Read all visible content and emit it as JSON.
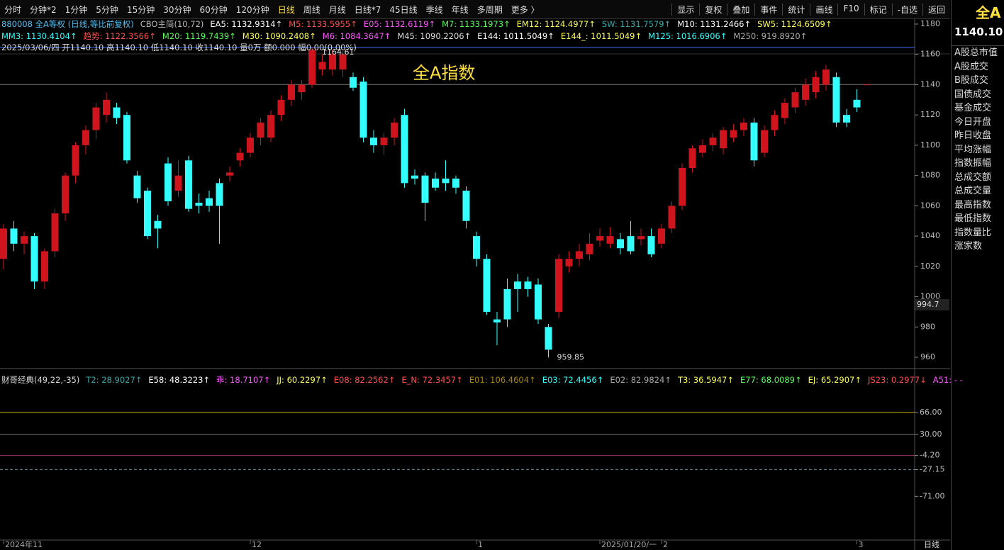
{
  "toolbar": {
    "periods": [
      "分时",
      "分钟*2",
      "1分钟",
      "5分钟",
      "15分钟",
      "30分钟",
      "60分钟",
      "120分钟",
      "日线",
      "周线",
      "月线",
      "日线*7",
      "45日线",
      "季线",
      "年线",
      "多周期",
      "更多 〉"
    ],
    "active": "日线",
    "actions": [
      "显示",
      "复权",
      "叠加",
      "事件",
      "统计",
      "画线",
      "F10",
      "标记",
      "-自选",
      "返回"
    ]
  },
  "side_panel": {
    "name": "全A",
    "price": "1140.10",
    "items": [
      "A股总市值",
      "A股成交",
      "B股成交",
      "国债成交",
      "基金成交",
      "今日开盘",
      "昨日收盘",
      "平均涨幅",
      "指数振幅",
      "总成交额",
      "总成交量",
      "最高指数",
      "最低指数",
      "指数量比",
      "涨家数"
    ]
  },
  "legend_rows": [
    [
      {
        "text": "880008 全A等权 (日线,等比前复权)",
        "color": "#4fc3f7"
      },
      {
        "text": "CBO主简(10,72)",
        "color": "#bbbbbb"
      },
      {
        "text": "EA5: 1132.9314↑",
        "color": "#ffffff"
      },
      {
        "text": "M5: 1133.5955↑",
        "color": "#ff5050"
      },
      {
        "text": "E05: 1132.6119↑",
        "color": "#ff55ff"
      },
      {
        "text": "M7: 1133.1973↑",
        "color": "#55ff55"
      },
      {
        "text": "EM12: 1124.4977↑",
        "color": "#ffff55"
      },
      {
        "text": "SW: 1131.7579↑",
        "color": "#3aa8a8"
      },
      {
        "text": "M10: 1131.2466↑",
        "color": "#ffffff"
      },
      {
        "text": "SW5: 1124.6509↑",
        "color": "#ffff55"
      }
    ],
    [
      {
        "text": "MM3: 1130.4104↑",
        "color": "#33ffff"
      },
      {
        "text": "趋势: 1122.3566↑",
        "color": "#ff5050"
      },
      {
        "text": "M20: 1119.7439↑",
        "color": "#55ff55"
      },
      {
        "text": "M30: 1090.2408↑",
        "color": "#ffff55"
      },
      {
        "text": "M6: 1084.3647↑",
        "color": "#ff55ff"
      },
      {
        "text": "M45: 1090.2206↑",
        "color": "#dddddd"
      },
      {
        "text": "E144: 1011.5049↑",
        "color": "#ffffff"
      },
      {
        "text": "E144_: 1011.5049↑",
        "color": "#ffff55"
      },
      {
        "text": "M125: 1016.6906↑",
        "color": "#33ffff"
      },
      {
        "text": "M250: 919.8920↑",
        "color": "#aaaaaa"
      }
    ],
    [
      {
        "text": "2025/03/06/四 开1140.10 高1140.10 低1140.10 收1140.10 量0万 额0.000 幅0.00(0.00%)",
        "color": "#dddddd"
      }
    ]
  ],
  "indicator_legend": [
    {
      "text": "财哥经典(49,22,-35)",
      "color": "#dddddd"
    },
    {
      "text": "T2: 28.9027↑",
      "color": "#3aa8a8"
    },
    {
      "text": "E58: 48.3223↑",
      "color": "#ffffff"
    },
    {
      "text": "乖: 18.7107↑",
      "color": "#ff55ff"
    },
    {
      "text": "JJ: 60.2297↑",
      "color": "#ffff55"
    },
    {
      "text": "E08: 82.2562↑",
      "color": "#ff5050"
    },
    {
      "text": "E_N: 72.3457↑",
      "color": "#ff5050"
    },
    {
      "text": "E01: 106.4604↑",
      "color": "#aa8800"
    },
    {
      "text": "E03: 72.4456↑",
      "color": "#33ffff"
    },
    {
      "text": "E02: 82.9824↑",
      "color": "#aaaaaa"
    },
    {
      "text": "T3: 36.5947↑",
      "color": "#ffff55"
    },
    {
      "text": "E77: 68.0089↑",
      "color": "#55ff55"
    },
    {
      "text": "EJ: 65.2907↑",
      "color": "#ffff55"
    },
    {
      "text": "JS23: 0.2977↓",
      "color": "#ff5050"
    },
    {
      "text": "A51: - -",
      "color": "#ff55ff"
    }
  ],
  "chart_data": {
    "type": "candlestick",
    "title": "全A指数",
    "high_label": "1164.61",
    "low_label": "959.85",
    "cursor_price": 994.7,
    "period_label": "日线",
    "up_color": "#d0141e",
    "down_color": "#33ffff",
    "ylim": [
      953,
      1180
    ],
    "yticks": [
      960,
      980,
      1000,
      1020,
      1040,
      1060,
      1080,
      1100,
      1120,
      1140,
      1160,
      1180
    ],
    "categories": [
      "2024年11",
      null,
      null,
      null,
      null,
      null,
      null,
      null,
      null,
      null,
      null,
      null,
      null,
      null,
      null,
      null,
      null,
      null,
      null,
      null,
      null,
      null,
      null,
      null,
      "12",
      null,
      null,
      null,
      null,
      null,
      null,
      null,
      null,
      null,
      null,
      null,
      null,
      null,
      null,
      null,
      null,
      null,
      null,
      null,
      null,
      null,
      "1",
      null,
      null,
      null,
      null,
      null,
      null,
      null,
      null,
      null,
      null,
      null,
      "2025/01/20/一",
      null,
      null,
      null,
      null,
      null,
      "2",
      null,
      null,
      null,
      null,
      null,
      null,
      null,
      null,
      null,
      null,
      null,
      null,
      null,
      null,
      null,
      null,
      null,
      null,
      "3",
      null
    ],
    "ohlc": [
      [
        1025,
        1048,
        1018,
        1045
      ],
      [
        1045,
        1050,
        1030,
        1035
      ],
      [
        1035,
        1043,
        1028,
        1040
      ],
      [
        1040,
        1042,
        1005,
        1010
      ],
      [
        1010,
        1032,
        1005,
        1030
      ],
      [
        1030,
        1058,
        1026,
        1055
      ],
      [
        1055,
        1082,
        1050,
        1080
      ],
      [
        1080,
        1102,
        1075,
        1100
      ],
      [
        1100,
        1113,
        1094,
        1110
      ],
      [
        1110,
        1128,
        1104,
        1125
      ],
      [
        1120,
        1135,
        1115,
        1130
      ],
      [
        1125,
        1128,
        1114,
        1118
      ],
      [
        1120,
        1122,
        1088,
        1090
      ],
      [
        1080,
        1083,
        1062,
        1065
      ],
      [
        1070,
        1072,
        1038,
        1040
      ],
      [
        1050,
        1054,
        1032,
        1045
      ],
      [
        1088,
        1092,
        1060,
        1063
      ],
      [
        1070,
        1090,
        1066,
        1080
      ],
      [
        1090,
        1093,
        1056,
        1058
      ],
      [
        1062,
        1068,
        1055,
        1060
      ],
      [
        1065,
        1070,
        1056,
        1060
      ],
      [
        1075,
        1078,
        1035,
        1060
      ],
      [
        1080,
        1086,
        1076,
        1082
      ],
      [
        1090,
        1098,
        1086,
        1095
      ],
      [
        1095,
        1108,
        1092,
        1105
      ],
      [
        1105,
        1118,
        1100,
        1115
      ],
      [
        1105,
        1123,
        1102,
        1120
      ],
      [
        1120,
        1133,
        1116,
        1130
      ],
      [
        1130,
        1143,
        1126,
        1140
      ],
      [
        1135,
        1143,
        1130,
        1140
      ],
      [
        1140,
        1164.61,
        1138,
        1163
      ],
      [
        1150,
        1160,
        1146,
        1155
      ],
      [
        1150,
        1163,
        1146,
        1160
      ],
      [
        1150,
        1162,
        1145,
        1160
      ],
      [
        1145,
        1148,
        1136,
        1138
      ],
      [
        1142,
        1145,
        1102,
        1105
      ],
      [
        1105,
        1110,
        1095,
        1100
      ],
      [
        1100,
        1108,
        1094,
        1105
      ],
      [
        1105,
        1118,
        1100,
        1115
      ],
      [
        1120,
        1124,
        1072,
        1075
      ],
      [
        1080,
        1084,
        1074,
        1078
      ],
      [
        1080,
        1082,
        1050,
        1062
      ],
      [
        1078,
        1082,
        1070,
        1072
      ],
      [
        1078,
        1090,
        1070,
        1075
      ],
      [
        1078,
        1080,
        1068,
        1072
      ],
      [
        1070,
        1073,
        1045,
        1050
      ],
      [
        1040,
        1043,
        1020,
        1025
      ],
      [
        1025,
        1028,
        988,
        990
      ],
      [
        985,
        990,
        968,
        983
      ],
      [
        1005,
        1012,
        980,
        985
      ],
      [
        1010,
        1015,
        990,
        1005
      ],
      [
        1010,
        1013,
        1000,
        1005
      ],
      [
        1008,
        1012,
        982,
        985
      ],
      [
        980,
        982,
        959.85,
        965
      ],
      [
        990,
        1028,
        986,
        1025
      ],
      [
        1020,
        1030,
        1016,
        1025
      ],
      [
        1025,
        1035,
        1020,
        1030
      ],
      [
        1028,
        1042,
        1024,
        1035
      ],
      [
        1037,
        1045,
        1033,
        1040
      ],
      [
        1035,
        1046,
        1032,
        1040
      ],
      [
        1038,
        1042,
        1028,
        1032
      ],
      [
        1040,
        1050,
        1028,
        1030
      ],
      [
        1038,
        1045,
        1034,
        1040
      ],
      [
        1040,
        1045,
        1026,
        1028
      ],
      [
        1035,
        1048,
        1032,
        1045
      ],
      [
        1045,
        1063,
        1042,
        1060
      ],
      [
        1060,
        1088,
        1057,
        1085
      ],
      [
        1085,
        1100,
        1082,
        1098
      ],
      [
        1095,
        1104,
        1092,
        1100
      ],
      [
        1100,
        1108,
        1096,
        1105
      ],
      [
        1098,
        1112,
        1094,
        1110
      ],
      [
        1105,
        1114,
        1102,
        1110
      ],
      [
        1110,
        1118,
        1106,
        1115
      ],
      [
        1115,
        1118,
        1086,
        1090
      ],
      [
        1095,
        1113,
        1092,
        1110
      ],
      [
        1110,
        1123,
        1106,
        1120
      ],
      [
        1118,
        1131,
        1114,
        1128
      ],
      [
        1125,
        1138,
        1121,
        1135
      ],
      [
        1130,
        1144,
        1126,
        1140
      ],
      [
        1135,
        1149,
        1131,
        1145
      ],
      [
        1140,
        1153,
        1136,
        1150
      ],
      [
        1145,
        1148,
        1112,
        1115
      ],
      [
        1120,
        1124,
        1112,
        1115
      ],
      [
        1130,
        1137,
        1122,
        1125
      ],
      [
        1140.1,
        1140.1,
        1140.1,
        1140.1
      ]
    ],
    "indicator": {
      "ylim": [
        -140,
        126
      ],
      "yticks": [
        {
          "value": 66,
          "label": "66.00"
        },
        {
          "value": 30,
          "label": "30.00"
        },
        {
          "value": -4.2,
          "label": "-4.20"
        },
        {
          "value": -27.15,
          "label": "-27.15"
        },
        {
          "value": -71,
          "label": "-71.00"
        }
      ],
      "line_colors": [
        "#c8b400",
        "#777777",
        "#a0306a",
        "#5a8a9a",
        null
      ]
    }
  }
}
